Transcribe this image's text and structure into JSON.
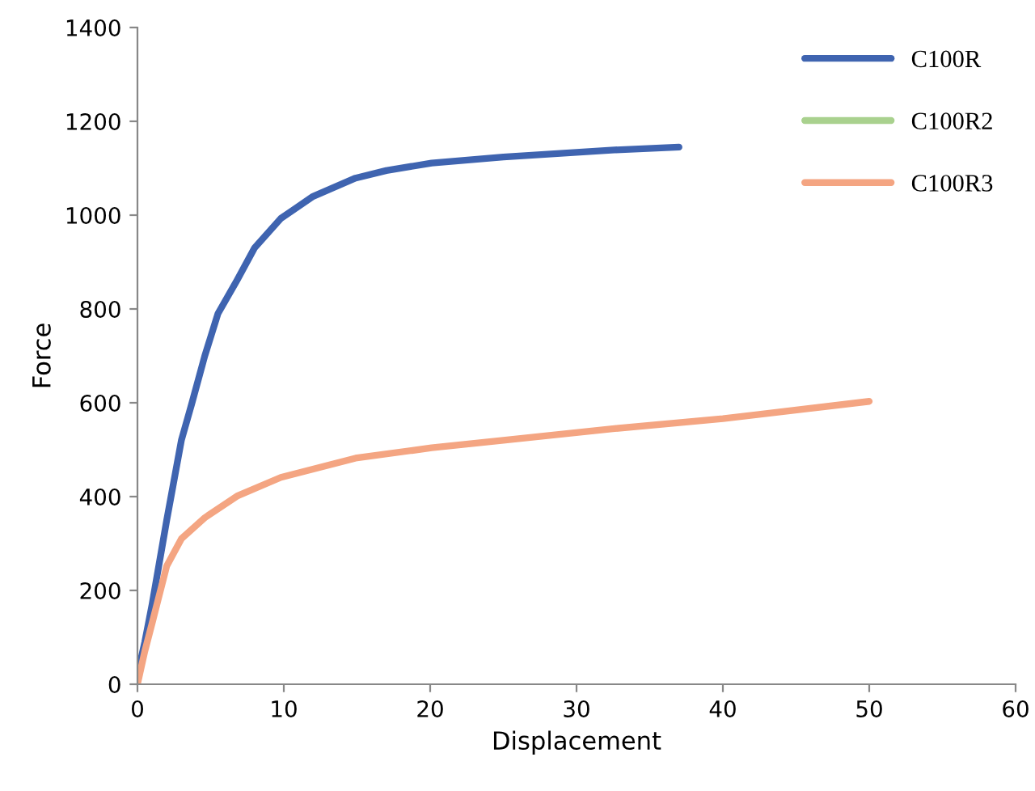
{
  "chart_data": {
    "type": "line",
    "xlabel": "Displacement",
    "ylabel": "Force",
    "xlim": [
      0,
      60
    ],
    "xticks": [
      0,
      10,
      20,
      30,
      40,
      50,
      60
    ],
    "ylim": [
      0,
      1400
    ],
    "yticks": [
      0,
      200,
      400,
      600,
      800,
      1000,
      1200,
      1400
    ],
    "grid": false,
    "legend": "top right",
    "marker": "none",
    "line_style": "solid",
    "series": [
      {
        "name": "C100R",
        "color": "#3f64b0",
        "x": [
          0,
          0.5,
          1,
          2,
          3,
          3.7,
          4.6,
          5.5,
          6.8,
          8,
          9.8,
          12,
          14.9,
          17,
          20.1,
          25,
          32.6,
          37
        ],
        "values": [
          20,
          90,
          170,
          350,
          520,
          597,
          700,
          790,
          861,
          930,
          993,
          1040,
          1079,
          1095,
          1111,
          1124,
          1139,
          1145
        ]
      },
      {
        "name": "C100R2",
        "color": "#a9d18e"
      },
      {
        "name": "C100R3",
        "color": "#f4a582",
        "x": [
          0,
          0.5,
          1,
          2,
          3,
          4.6,
          6.8,
          9.8,
          14.9,
          20.1,
          25,
          32.6,
          40,
          50
        ],
        "values": [
          0,
          70,
          130,
          252,
          310,
          355,
          401,
          441,
          482,
          504,
          520,
          545,
          566,
          603
        ]
      }
    ]
  }
}
